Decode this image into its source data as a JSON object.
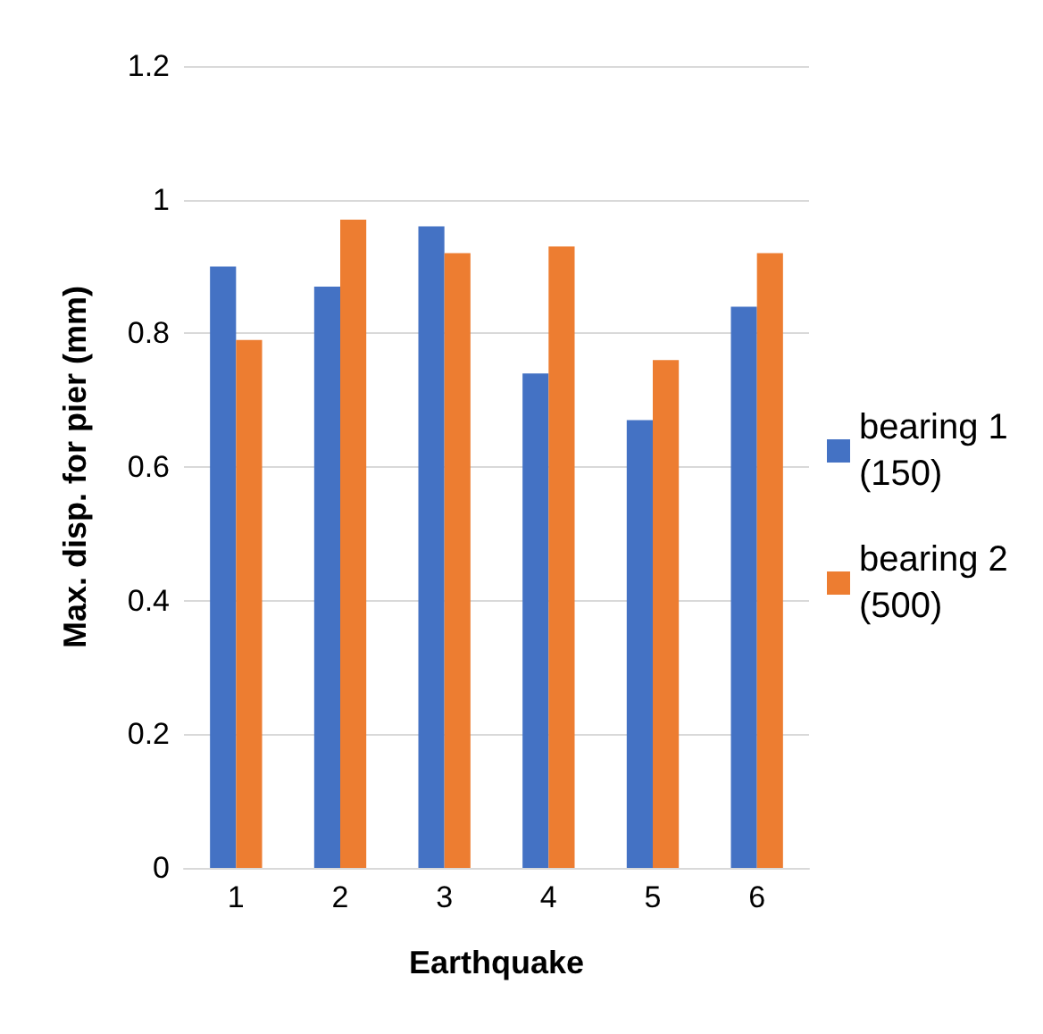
{
  "chart_data": {
    "type": "bar",
    "xlabel": "Earthquake",
    "ylabel": "Max. disp. for pier (mm)",
    "categories": [
      "1",
      "2",
      "3",
      "4",
      "5",
      "6"
    ],
    "series": [
      {
        "name": "bearing 1 (150)",
        "color": "#4472c4",
        "values": [
          0.9,
          0.87,
          0.96,
          0.74,
          0.67,
          0.84
        ]
      },
      {
        "name": "bearing 2 (500)",
        "color": "#ed7d31",
        "values": [
          0.79,
          0.97,
          0.92,
          0.93,
          0.76,
          0.92
        ]
      }
    ],
    "ylim": [
      0,
      1.2
    ],
    "yticks": [
      0,
      0.2,
      0.4,
      0.6,
      0.8,
      1,
      1.2
    ],
    "grid": "y",
    "legend": "right"
  }
}
